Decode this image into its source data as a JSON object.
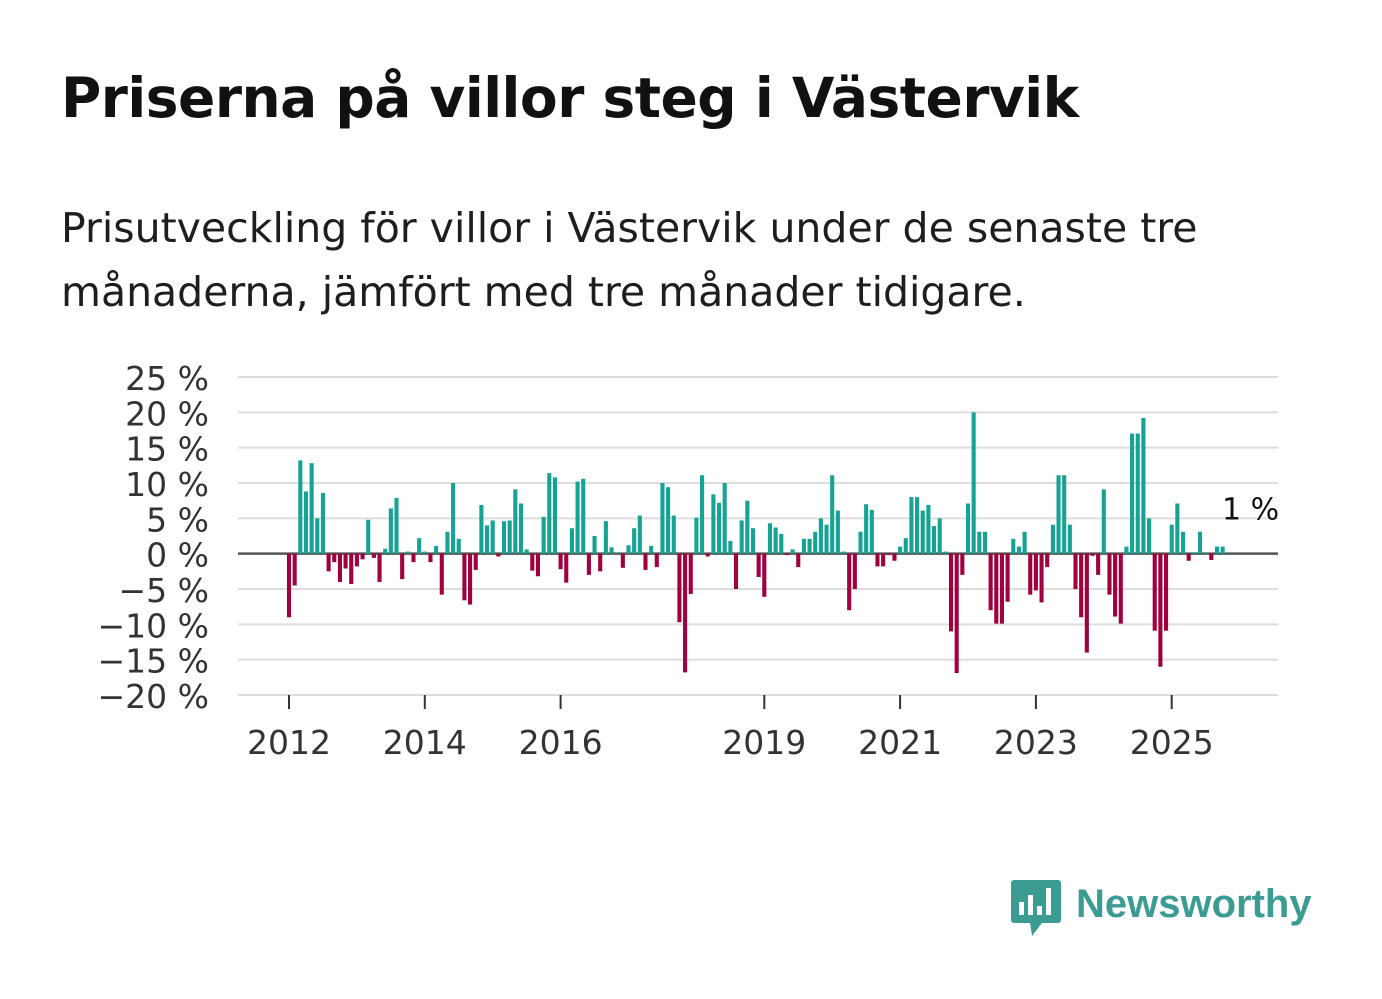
{
  "title": "Priserna på villor steg i Västervik",
  "subtitle": "Prisutveckling för villor i Västervik under de senaste tre månaderna, jämfört med tre månader tidigare.",
  "brand": {
    "name": "Newsworthy",
    "color": "#3a9c93",
    "icon": "newsworthy-bar-chart-icon"
  },
  "colors": {
    "positive": "#16a394",
    "negative": "#a1003e",
    "grid": "#dddddd",
    "zero_line": "#555555"
  },
  "chart_data": {
    "type": "bar",
    "title": "Priserna på villor steg i Västervik",
    "ylabel": "",
    "ylim": [
      -20,
      25
    ],
    "y_ticks": [
      25,
      20,
      15,
      10,
      5,
      0,
      -5,
      -10,
      -15,
      -20
    ],
    "y_tick_labels": [
      "25 %",
      "20 %",
      "15 %",
      "10 %",
      "5 %",
      "0 %",
      "−5 %",
      "−10 %",
      "−15 %",
      "−20 %"
    ],
    "x_ticks": [
      2012,
      2014,
      2016,
      2019,
      2021,
      2023,
      2025
    ],
    "x_tick_labels": [
      "2012",
      "2014",
      "2016",
      "2019",
      "2021",
      "2023",
      "2025"
    ],
    "start": "2012-01",
    "frequency": "monthly",
    "last_value_label": "1 %",
    "values": [
      -9,
      -4.5,
      13.2,
      8.8,
      12.8,
      5,
      8.6,
      -2.5,
      -1.2,
      -4,
      -2.1,
      -4.3,
      -1.8,
      -0.8,
      4.8,
      -0.6,
      -4,
      0.7,
      6.4,
      7.9,
      -3.6,
      0.3,
      -1.2,
      2.2,
      0.3,
      -1.2,
      1.1,
      -5.8,
      3.1,
      10,
      2.1,
      -6.6,
      -7.2,
      -2.3,
      6.9,
      4,
      4.7,
      -0.4,
      4.6,
      4.7,
      9.1,
      7.1,
      0.6,
      -2.4,
      -3.2,
      5.2,
      11.4,
      10.8,
      -2.2,
      -4.1,
      3.6,
      10.2,
      10.6,
      -3,
      2.5,
      -2.5,
      4.6,
      0.9,
      0.1,
      -2,
      1.2,
      3.6,
      5.4,
      -2.3,
      1.1,
      -1.9,
      10,
      9.4,
      5.4,
      -9.7,
      -16.8,
      -5.7,
      5.1,
      11.1,
      -0.4,
      8.4,
      7.2,
      10,
      1.8,
      -5,
      4.7,
      7.5,
      3.6,
      -3.3,
      -6.1,
      4.3,
      3.7,
      2.8,
      -0.2,
      0.6,
      -1.9,
      2.1,
      2.1,
      3.1,
      5,
      4.1,
      11.1,
      6.1,
      0.3,
      -8,
      -5,
      3.1,
      7,
      6.2,
      -1.8,
      -1.8,
      -0.2,
      -1,
      1,
      2.2,
      8,
      8,
      6.1,
      6.9,
      3.9,
      5,
      0.3,
      -11,
      -16.9,
      -3,
      7.1,
      20,
      3.1,
      3.1,
      -8,
      -9.9,
      -9.9,
      -6.8,
      2.1,
      1,
      3.1,
      -5.8,
      -5.2,
      -6.9,
      -1.9,
      4.1,
      11.1,
      11.1,
      4.1,
      -5,
      -9,
      -14,
      -0.3,
      -3,
      9.1,
      -5.8,
      -8.9,
      -9.9,
      1,
      17,
      17,
      19.2,
      5,
      -10.9,
      -16,
      -10.9,
      4.1,
      7.1,
      3.1,
      -1,
      0.2,
      3.1,
      0.1,
      -0.9,
      1,
      1
    ]
  }
}
